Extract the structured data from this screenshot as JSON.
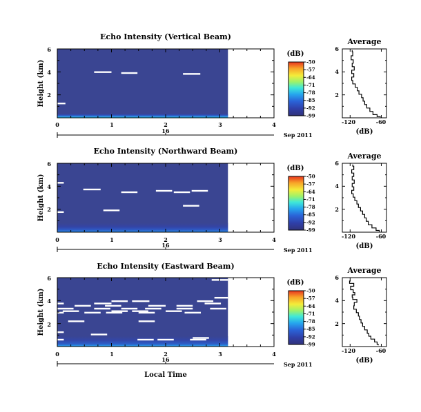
{
  "chart_data": [
    {
      "type": "heatmap",
      "title": "Echo Intensity (Vertical Beam)",
      "ylabel": "Height (km)",
      "yticks": [
        "6",
        "4",
        "2"
      ],
      "xticks": [
        "0",
        "1",
        "2",
        "3",
        "4"
      ],
      "xlim": [
        0,
        4
      ],
      "ylim": [
        0,
        6
      ],
      "date_day": "16",
      "date_month": "Sep 2011",
      "colorbar": {
        "unit": "(dB)",
        "ticks": [
          "-50",
          "-57",
          "-64",
          "-71",
          "-78",
          "-85",
          "-92",
          "-99"
        ],
        "range": [
          -99,
          -50
        ]
      },
      "data_end_hour": 3.15,
      "background_db": -97,
      "bottom_layer_km": 0.35,
      "gaps": [
        {
          "t0": 0.68,
          "t1": 1.0,
          "h": 3.98
        },
        {
          "t0": 1.18,
          "t1": 1.48,
          "h": 3.9
        },
        {
          "t0": 2.32,
          "t1": 2.64,
          "h": 3.82
        },
        {
          "t0": 0.0,
          "t1": 0.15,
          "h": 1.25
        }
      ],
      "profile": {
        "title": "Average",
        "xlabel": "(dB)",
        "xticks": [
          "-120",
          "-60"
        ],
        "xlim": [
          -135,
          -50
        ],
        "yticks": [
          "6",
          "4",
          "2"
        ],
        "ylim": [
          0,
          6
        ],
        "points": [
          [
            -116,
            5.9
          ],
          [
            -115,
            5.6
          ],
          [
            -118,
            5.2
          ],
          [
            -114,
            4.9
          ],
          [
            -116,
            4.6
          ],
          [
            -112,
            4.3
          ],
          [
            -117,
            4.0
          ],
          [
            -113,
            3.7
          ],
          [
            -117,
            3.4
          ],
          [
            -115,
            3.1
          ],
          [
            -110,
            2.8
          ],
          [
            -106,
            2.5
          ],
          [
            -103,
            2.2
          ],
          [
            -98,
            1.9
          ],
          [
            -95,
            1.6
          ],
          [
            -92,
            1.3
          ],
          [
            -88,
            1.0
          ],
          [
            -82,
            0.7
          ],
          [
            -76,
            0.4
          ],
          [
            -68,
            0.15
          ],
          [
            -62,
            0.05
          ]
        ]
      }
    },
    {
      "type": "heatmap",
      "title": "Echo Intensity (Northward Beam)",
      "ylabel": "Height (km)",
      "yticks": [
        "6",
        "4",
        "2"
      ],
      "xticks": [
        "0",
        "1",
        "2",
        "3",
        "4"
      ],
      "xlim": [
        0,
        4
      ],
      "ylim": [
        0,
        6
      ],
      "date_day": "16",
      "date_month": "Sep 2011",
      "colorbar": {
        "unit": "(dB)",
        "ticks": [
          "-50",
          "-57",
          "-64",
          "-71",
          "-78",
          "-85",
          "-92",
          "-99"
        ],
        "range": [
          -99,
          -50
        ]
      },
      "data_end_hour": 3.15,
      "background_db": -97,
      "bottom_layer_km": 0.8,
      "gaps": [
        {
          "t0": 0.0,
          "t1": 0.12,
          "h": 4.3
        },
        {
          "t0": 0.48,
          "t1": 0.8,
          "h": 3.72
        },
        {
          "t0": 1.18,
          "t1": 1.48,
          "h": 3.48
        },
        {
          "t0": 1.82,
          "t1": 2.12,
          "h": 3.6
        },
        {
          "t0": 2.15,
          "t1": 2.45,
          "h": 3.48
        },
        {
          "t0": 2.48,
          "t1": 2.78,
          "h": 3.6
        },
        {
          "t0": 2.32,
          "t1": 2.62,
          "h": 2.3
        },
        {
          "t0": 0.85,
          "t1": 1.15,
          "h": 1.9
        },
        {
          "t0": 0.0,
          "t1": 0.12,
          "h": 1.75
        }
      ],
      "profile": {
        "title": "Average",
        "xlabel": "(dB)",
        "xticks": [
          "-120",
          "-60"
        ],
        "xlim": [
          -135,
          -50
        ],
        "yticks": [
          "6",
          "4",
          "2"
        ],
        "ylim": [
          0,
          6
        ],
        "points": [
          [
            -115,
            5.9
          ],
          [
            -113,
            5.6
          ],
          [
            -117,
            5.3
          ],
          [
            -113,
            5.0
          ],
          [
            -116,
            4.7
          ],
          [
            -112,
            4.4
          ],
          [
            -116,
            4.1
          ],
          [
            -113,
            3.8
          ],
          [
            -117,
            3.5
          ],
          [
            -114,
            3.2
          ],
          [
            -111,
            2.9
          ],
          [
            -107,
            2.6
          ],
          [
            -104,
            2.3
          ],
          [
            -100,
            2.0
          ],
          [
            -96,
            1.7
          ],
          [
            -92,
            1.4
          ],
          [
            -89,
            1.1
          ],
          [
            -85,
            0.8
          ],
          [
            -78,
            0.5
          ],
          [
            -70,
            0.25
          ],
          [
            -64,
            0.05
          ]
        ]
      }
    },
    {
      "type": "heatmap",
      "title": "Echo Intensity (Eastward Beam)",
      "ylabel": "Height (km)",
      "yticks": [
        "6",
        "4",
        "2"
      ],
      "xticks": [
        "0",
        "1",
        "2",
        "3",
        "4"
      ],
      "xlim": [
        0,
        4
      ],
      "ylim": [
        0,
        6
      ],
      "date_day": "16",
      "date_month": "Sep 2011",
      "colorbar": {
        "unit": "(dB)",
        "ticks": [
          "-50",
          "-57",
          "-64",
          "-71",
          "-78",
          "-85",
          "-92",
          "-99"
        ],
        "range": [
          -99,
          -50
        ]
      },
      "data_end_hour": 3.15,
      "background_db": -97,
      "bottom_layer_km": 0.9,
      "gaps": [
        {
          "t0": 2.85,
          "t1": 3.15,
          "h": 5.8
        },
        {
          "t0": 2.9,
          "t1": 3.15,
          "h": 4.25
        },
        {
          "t0": 1.0,
          "t1": 1.3,
          "h": 3.95
        },
        {
          "t0": 1.38,
          "t1": 1.7,
          "h": 3.95
        },
        {
          "t0": 2.58,
          "t1": 2.88,
          "h": 3.95
        },
        {
          "t0": 0.0,
          "t1": 0.12,
          "h": 3.75
        },
        {
          "t0": 0.68,
          "t1": 1.0,
          "h": 3.75
        },
        {
          "t0": 2.72,
          "t1": 3.02,
          "h": 3.75
        },
        {
          "t0": 0.32,
          "t1": 0.62,
          "h": 3.55
        },
        {
          "t0": 0.88,
          "t1": 1.18,
          "h": 3.55
        },
        {
          "t0": 1.68,
          "t1": 2.0,
          "h": 3.55
        },
        {
          "t0": 2.2,
          "t1": 2.5,
          "h": 3.55
        },
        {
          "t0": 0.0,
          "t1": 0.3,
          "h": 3.3
        },
        {
          "t0": 0.68,
          "t1": 0.98,
          "h": 3.3
        },
        {
          "t0": 1.18,
          "t1": 1.48,
          "h": 3.3
        },
        {
          "t0": 1.62,
          "t1": 1.92,
          "h": 3.3
        },
        {
          "t0": 2.2,
          "t1": 2.5,
          "h": 3.3
        },
        {
          "t0": 2.82,
          "t1": 3.12,
          "h": 3.3
        },
        {
          "t0": 0.1,
          "t1": 0.4,
          "h": 3.08
        },
        {
          "t0": 1.0,
          "t1": 1.3,
          "h": 3.08
        },
        {
          "t0": 1.38,
          "t1": 1.68,
          "h": 3.08
        },
        {
          "t0": 2.0,
          "t1": 2.3,
          "h": 3.08
        },
        {
          "t0": 0.0,
          "t1": 0.12,
          "h": 2.95
        },
        {
          "t0": 0.5,
          "t1": 0.8,
          "h": 2.95
        },
        {
          "t0": 0.9,
          "t1": 1.2,
          "h": 2.95
        },
        {
          "t0": 1.5,
          "t1": 1.8,
          "h": 2.95
        },
        {
          "t0": 2.35,
          "t1": 2.65,
          "h": 2.95
        },
        {
          "t0": 0.2,
          "t1": 0.5,
          "h": 2.2
        },
        {
          "t0": 1.5,
          "t1": 1.8,
          "h": 2.2
        },
        {
          "t0": 0.0,
          "t1": 0.12,
          "h": 1.25
        },
        {
          "t0": 0.62,
          "t1": 0.92,
          "h": 1.05
        },
        {
          "t0": 1.48,
          "t1": 1.78,
          "h": 0.6
        },
        {
          "t0": 1.85,
          "t1": 2.15,
          "h": 0.6
        },
        {
          "t0": 2.45,
          "t1": 2.75,
          "h": 0.6
        },
        {
          "t0": 2.5,
          "t1": 2.8,
          "h": 0.75
        },
        {
          "t0": 0.0,
          "t1": 0.12,
          "h": 0.6
        }
      ],
      "profile": {
        "title": "Average",
        "xlabel": "(dB)",
        "xticks": [
          "-120",
          "-60"
        ],
        "xlim": [
          -135,
          -50
        ],
        "yticks": [
          "6",
          "4",
          "2"
        ],
        "ylim": [
          0,
          6
        ],
        "points": [
          [
            -120,
            5.8
          ],
          [
            -121,
            5.6
          ],
          [
            -113,
            5.4
          ],
          [
            -119,
            5.1
          ],
          [
            -114,
            4.8
          ],
          [
            -111,
            4.6
          ],
          [
            -116,
            4.4
          ],
          [
            -115,
            4.2
          ],
          [
            -107,
            4.0
          ],
          [
            -112,
            3.7
          ],
          [
            -113,
            3.4
          ],
          [
            -108,
            3.1
          ],
          [
            -104,
            2.8
          ],
          [
            -102,
            2.5
          ],
          [
            -99,
            2.2
          ],
          [
            -96,
            1.9
          ],
          [
            -92,
            1.6
          ],
          [
            -87,
            1.3
          ],
          [
            -84,
            1.0
          ],
          [
            -80,
            0.8
          ],
          [
            -73,
            0.5
          ],
          [
            -68,
            0.3
          ],
          [
            -66,
            0.1
          ]
        ]
      }
    }
  ],
  "footer": {
    "xlabel": "Local Time"
  }
}
